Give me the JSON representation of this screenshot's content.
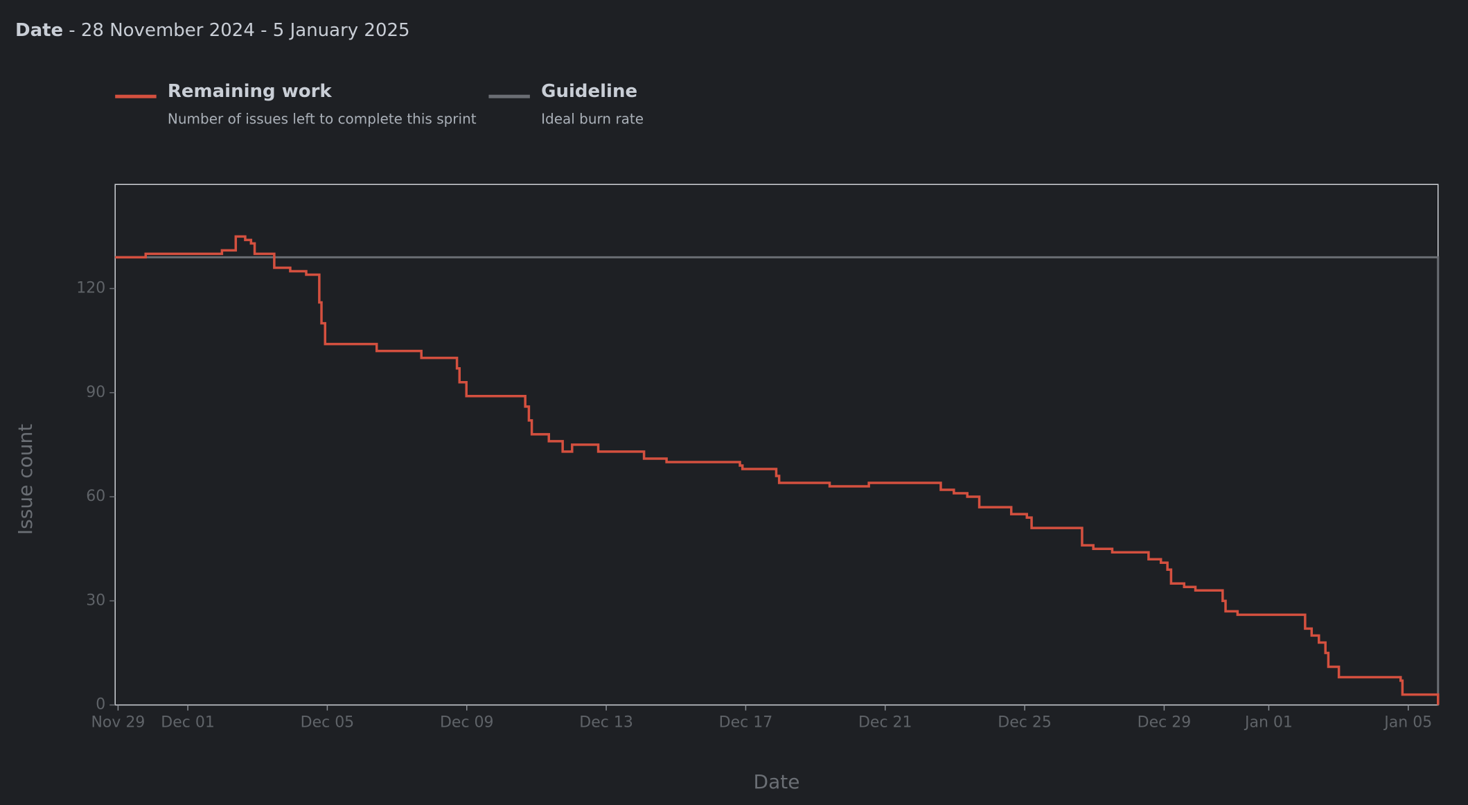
{
  "header": {
    "label": "Date",
    "text": "- 28 November 2024 - 5 January 2025"
  },
  "chart_data": {
    "type": "line",
    "x_label": "Date",
    "y_label": "Issue count",
    "xlim": [
      "2024-11-28T22:00",
      "2025-01-05T20:30"
    ],
    "xticks": [
      {
        "value": "2024-11-29T00:00",
        "label": "Nov 29"
      },
      {
        "value": "2024-12-01T00:00",
        "label": "Dec 01"
      },
      {
        "value": "2024-12-05T00:00",
        "label": "Dec 05"
      },
      {
        "value": "2024-12-09T00:00",
        "label": "Dec 09"
      },
      {
        "value": "2024-12-13T00:00",
        "label": "Dec 13"
      },
      {
        "value": "2024-12-17T00:00",
        "label": "Dec 17"
      },
      {
        "value": "2024-12-21T00:00",
        "label": "Dec 21"
      },
      {
        "value": "2024-12-25T00:00",
        "label": "Dec 25"
      },
      {
        "value": "2024-12-29T00:00",
        "label": "Dec 29"
      },
      {
        "value": "2025-01-01T00:00",
        "label": "Jan 01"
      },
      {
        "value": "2025-01-05T00:00",
        "label": "Jan 05"
      }
    ],
    "ylim": [
      0,
      150
    ],
    "yticks": [
      0,
      30,
      60,
      90,
      120
    ],
    "step": true,
    "series": [
      {
        "name": "Remaining work",
        "description": "Number of issues left to complete this sprint",
        "color": "#d4503f",
        "x": [
          "2024-11-28T22:00",
          "2024-11-29T19:00",
          "2024-12-01T23:30",
          "2024-12-02T09:00",
          "2024-12-02T15:30",
          "2024-12-02T19:30",
          "2024-12-02T22:00",
          "2024-12-03T11:30",
          "2024-12-03T22:30",
          "2024-12-04T09:30",
          "2024-12-04T18:30",
          "2024-12-04T20:00",
          "2024-12-04T22:30",
          "2024-12-06T10:00",
          "2024-12-07T16:45",
          "2024-12-08T17:15",
          "2024-12-08T19:00",
          "2024-12-08T23:45",
          "2024-12-10T16:15",
          "2024-12-10T18:45",
          "2024-12-10T20:45",
          "2024-12-11T08:30",
          "2024-12-11T18:00",
          "2024-12-12T00:30",
          "2024-12-12T18:30",
          "2024-12-14T02:00",
          "2024-12-14T17:30",
          "2024-12-16T20:00",
          "2024-12-16T21:45",
          "2024-12-17T21:00",
          "2024-12-17T23:00",
          "2024-12-19T09:45",
          "2024-12-20T12:45",
          "2024-12-22T14:15",
          "2024-12-22T23:15",
          "2024-12-23T08:30",
          "2024-12-23T16:45",
          "2024-12-24T14:45",
          "2024-12-25T01:30",
          "2024-12-25T04:45",
          "2024-12-26T15:30",
          "2024-12-26T23:15",
          "2024-12-27T12:15",
          "2024-12-28T13:15",
          "2024-12-28T21:45",
          "2024-12-29T02:15",
          "2024-12-29T04:45",
          "2024-12-29T13:45",
          "2024-12-29T21:30",
          "2024-12-30T16:15",
          "2024-12-30T18:15",
          "2024-12-31T02:30",
          "2025-01-02T01:00",
          "2025-01-02T05:30",
          "2025-01-02T10:30",
          "2025-01-02T15:00",
          "2025-01-02T17:00",
          "2025-01-03T00:15",
          "2025-01-04T18:45",
          "2025-01-04T20:00",
          "2025-01-05T19:00",
          "2025-01-05T20:30"
        ],
        "values": [
          129,
          130,
          131,
          135,
          134,
          133,
          130,
          126,
          125,
          124,
          116,
          110,
          104,
          102,
          100,
          97,
          93,
          89,
          86,
          82,
          78,
          76,
          73,
          75,
          73,
          71,
          70,
          69,
          68,
          66,
          64,
          63,
          64,
          62,
          61,
          60,
          57,
          55,
          54,
          51,
          46,
          45,
          44,
          42,
          41,
          39,
          35,
          34,
          33,
          30,
          27,
          26,
          22,
          20,
          18,
          15,
          11,
          8,
          7,
          3,
          3,
          0
        ]
      },
      {
        "name": "Guideline",
        "description": "Ideal burn rate",
        "color": "#6a6d73",
        "x": [
          "2024-11-28T22:00",
          "2025-01-05T20:30"
        ],
        "values": [
          129,
          0
        ]
      }
    ]
  }
}
